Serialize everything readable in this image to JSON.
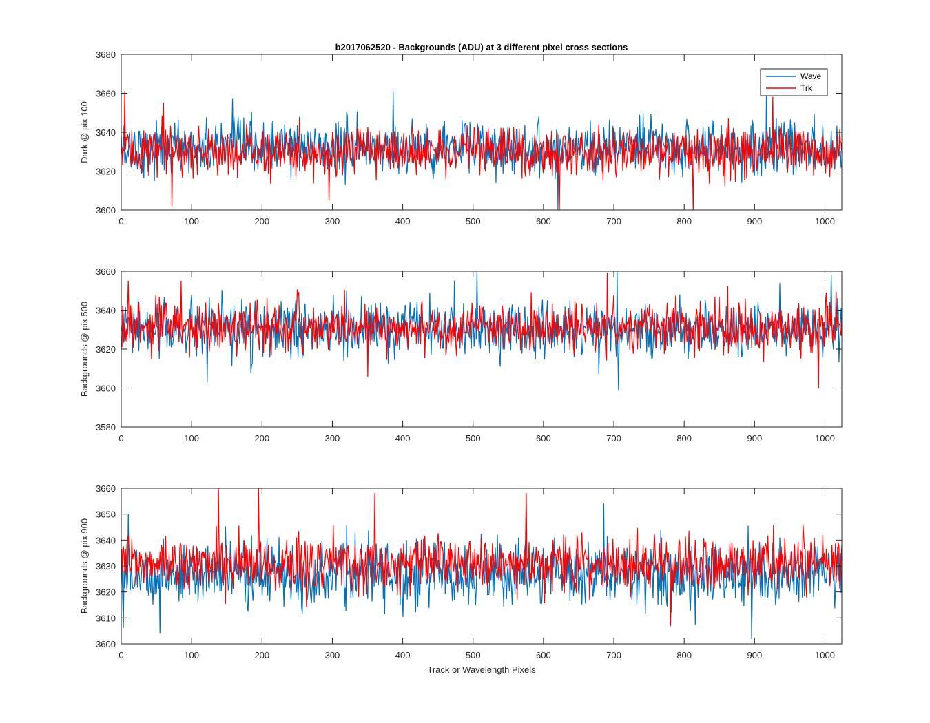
{
  "colors": {
    "wave": "#0072BD",
    "trk": "#FF0000",
    "axis": "#262626",
    "background": "#ffffff"
  },
  "legend": {
    "items": [
      "Wave",
      "Trk"
    ],
    "location": "top-right of top panel"
  },
  "chart_data": [
    {
      "type": "line",
      "title": "b2017062520 - Backgrounds (ADU) at 3 different pixel cross sections",
      "xlabel": "",
      "ylabel": "Dark @ pix 100",
      "xlim": [
        0,
        1024
      ],
      "ylim": [
        3600,
        3680
      ],
      "xticks": [
        0,
        100,
        200,
        300,
        400,
        500,
        600,
        700,
        800,
        900,
        1000
      ],
      "yticks": [
        3600,
        3620,
        3640,
        3660,
        3680
      ],
      "grid": false,
      "series": [
        {
          "name": "Wave",
          "color": "#0072BD",
          "mean": 3632,
          "noise": 8,
          "x_range": [
            0,
            1024
          ],
          "samples": 1024,
          "notable_points": [
            [
              386,
              3661
            ],
            [
              916,
              3661
            ],
            [
              158,
              3657
            ],
            [
              620,
              3600
            ]
          ]
        },
        {
          "name": "Trk",
          "color": "#FF0000",
          "mean": 3630,
          "noise": 7,
          "x_range": [
            0,
            1024
          ],
          "samples": 1024,
          "notable_points": [
            [
              5,
              3661
            ],
            [
              60,
              3655
            ],
            [
              72,
              3602
            ],
            [
              622,
              3600
            ],
            [
              812,
              3600
            ],
            [
              925,
              3658
            ],
            [
              295,
              3605
            ]
          ]
        }
      ]
    },
    {
      "type": "line",
      "title": "",
      "xlabel": "",
      "ylabel": "Backgrounds @ pix 500",
      "xlim": [
        0,
        1024
      ],
      "ylim": [
        3580,
        3660
      ],
      "xticks": [
        0,
        100,
        200,
        300,
        400,
        500,
        600,
        700,
        800,
        900,
        1000
      ],
      "yticks": [
        3580,
        3600,
        3620,
        3640,
        3660
      ],
      "grid": false,
      "series": [
        {
          "name": "Wave",
          "color": "#0072BD",
          "mean": 3630,
          "noise": 8,
          "x_range": [
            0,
            1024
          ],
          "samples": 1024,
          "notable_points": [
            [
              505,
              3660
            ],
            [
              704,
              3660
            ],
            [
              706,
              3599
            ],
            [
              122,
              3603
            ],
            [
              1008,
              3658
            ]
          ]
        },
        {
          "name": "Trk",
          "color": "#FF0000",
          "mean": 3631,
          "noise": 7,
          "x_range": [
            0,
            1024
          ],
          "samples": 1024,
          "notable_points": [
            [
              10,
              3655
            ],
            [
              85,
              3655
            ],
            [
              690,
              3659
            ],
            [
              350,
              3606
            ],
            [
              990,
              3600
            ]
          ]
        }
      ]
    },
    {
      "type": "line",
      "title": "",
      "xlabel": "Track or Wavelength Pixels",
      "ylabel": "Backgrounds @ pix 900",
      "xlim": [
        0,
        1024
      ],
      "ylim": [
        3600,
        3660
      ],
      "xticks": [
        0,
        100,
        200,
        300,
        400,
        500,
        600,
        700,
        800,
        900,
        1000
      ],
      "yticks": [
        3600,
        3610,
        3620,
        3630,
        3640,
        3650,
        3660
      ],
      "grid": false,
      "series": [
        {
          "name": "Wave",
          "color": "#0072BD",
          "mean": 3627,
          "noise": 7,
          "x_range": [
            0,
            1024
          ],
          "samples": 1024,
          "notable_points": [
            [
              55,
              3604
            ],
            [
              895,
              3602
            ],
            [
              685,
              3654
            ],
            [
              10,
              3650
            ]
          ]
        },
        {
          "name": "Trk",
          "color": "#FF0000",
          "mean": 3631,
          "noise": 6,
          "x_range": [
            0,
            1024
          ],
          "samples": 1024,
          "notable_points": [
            [
              138,
              3660
            ],
            [
              195,
              3660
            ],
            [
              360,
              3658
            ],
            [
              575,
              3658
            ],
            [
              780,
              3607
            ]
          ]
        }
      ]
    }
  ]
}
